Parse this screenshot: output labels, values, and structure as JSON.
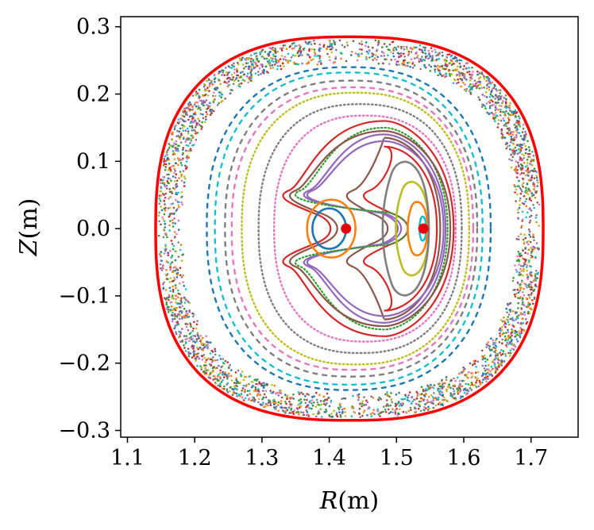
{
  "chart_data": {
    "type": "scatter",
    "title": "",
    "xlabel": {
      "symbol": "R",
      "unit": "(m)"
    },
    "ylabel": {
      "symbol": "Z",
      "unit": "(m)"
    },
    "xlim": [
      1.09,
      1.77
    ],
    "ylim": [
      -0.31,
      0.315
    ],
    "grid": false,
    "legend": "none",
    "x_ticks": [
      "1.1",
      "1.2",
      "1.3",
      "1.4",
      "1.5",
      "1.6",
      "1.7"
    ],
    "x_tick_values": [
      1.1,
      1.2,
      1.3,
      1.4,
      1.5,
      1.6,
      1.7
    ],
    "y_ticks": [
      "0.3",
      "0.2",
      "0.1",
      "0.0",
      "−0.1",
      "−0.2",
      "−0.3"
    ],
    "y_tick_values": [
      0.3,
      0.2,
      0.1,
      0.0,
      -0.1,
      -0.2,
      -0.3
    ],
    "boundary": {
      "name": "last closed flux surface",
      "color": "#ff0000",
      "center": [
        1.43,
        0.0
      ],
      "left_r": 1.142,
      "right_r": 1.718,
      "top_z": 0.285,
      "bottom_z": -0.285
    },
    "critical_points": [
      {
        "name": "magnetic-axis",
        "r": 1.425,
        "z": 0.0,
        "color": "#e8000b"
      },
      {
        "name": "island-o-point",
        "r": 1.54,
        "z": 0.0,
        "color": "#e8000b"
      }
    ],
    "core_surfaces": [
      {
        "color": "#1f77b4",
        "center": [
          1.4,
          0.0
        ],
        "half_width_r": 0.025,
        "half_height_z": 0.03
      },
      {
        "color": "#ff7f0e",
        "center": [
          1.403,
          0.0
        ],
        "half_width_r": 0.036,
        "half_height_z": 0.043
      }
    ],
    "island_surfaces": [
      {
        "color": "#17becf",
        "center": [
          1.54,
          0.0
        ],
        "half_width_r": 0.004,
        "half_height_z": 0.018
      },
      {
        "color": "#ff7f0e",
        "center": [
          1.534,
          0.0
        ],
        "half_width_r": 0.012,
        "half_height_z": 0.04
      },
      {
        "color": "#bcbd22",
        "center": [
          1.528,
          0.0
        ],
        "half_width_r": 0.02,
        "half_height_z": 0.07
      },
      {
        "color": "#7f7f7f",
        "center": [
          1.52,
          0.0
        ],
        "half_width_r": 0.028,
        "half_height_z": 0.1
      }
    ],
    "crescent_surfaces": [
      {
        "color": "#d62728",
        "outer_r": 1.56,
        "top_z": 0.122,
        "left_r": 1.46,
        "neck_r": 1.455
      },
      {
        "color": "#8c564b",
        "outer_r": 1.565,
        "top_z": 0.135,
        "left_r": 1.435,
        "neck_r": 1.425
      },
      {
        "color": "#9467bd",
        "outer_r": 1.57,
        "top_z": 0.13,
        "left_r": 1.375,
        "neck_r": 1.44
      },
      {
        "color": "#9467bd",
        "outer_r": 1.573,
        "top_z": 0.14,
        "left_r": 1.37,
        "neck_r": 1.445
      },
      {
        "color": "#2ca02c",
        "outer_r": 1.576,
        "top_z": 0.15,
        "left_r": 1.357,
        "neck_r": 1.455
      },
      {
        "color": "#8c564b",
        "outer_r": 1.58,
        "top_z": 0.145,
        "left_r": 1.35,
        "neck_r": 1.35
      },
      {
        "color": "#d62728",
        "outer_r": 1.585,
        "top_z": 0.16,
        "left_r": 1.34,
        "neck_r": 1.34
      }
    ],
    "nested_surfaces": [
      {
        "color": "#e377c2",
        "style": "dotted",
        "left_r": 1.318,
        "right_r": 1.588,
        "top_z": 0.168
      },
      {
        "color": "#7f7f7f",
        "style": "dotted",
        "left_r": 1.295,
        "right_r": 1.597,
        "top_z": 0.185
      },
      {
        "color": "#bcbd22",
        "style": "dotted",
        "left_r": 1.27,
        "right_r": 1.608,
        "top_z": 0.202
      },
      {
        "color": "#e377c2",
        "style": "dashed",
        "left_r": 1.255,
        "right_r": 1.614,
        "top_z": 0.21
      },
      {
        "color": "#7f7f7f",
        "style": "dashed",
        "left_r": 1.245,
        "right_r": 1.62,
        "top_z": 0.22
      },
      {
        "color": "#17becf",
        "style": "dashed",
        "left_r": 1.23,
        "right_r": 1.628,
        "top_z": 0.232
      },
      {
        "color": "#1f77b4",
        "style": "dashed",
        "left_r": 1.218,
        "right_r": 1.64,
        "top_z": 0.24
      }
    ],
    "stochastic_region": {
      "inner_scale": 0.86,
      "outer_scale": 0.985,
      "colors": [
        "#1f77b4",
        "#ff7f0e",
        "#2ca02c",
        "#d62728",
        "#9467bd",
        "#8c564b",
        "#e377c2",
        "#7f7f7f",
        "#bcbd22",
        "#17becf"
      ],
      "point_count": 3200
    }
  }
}
